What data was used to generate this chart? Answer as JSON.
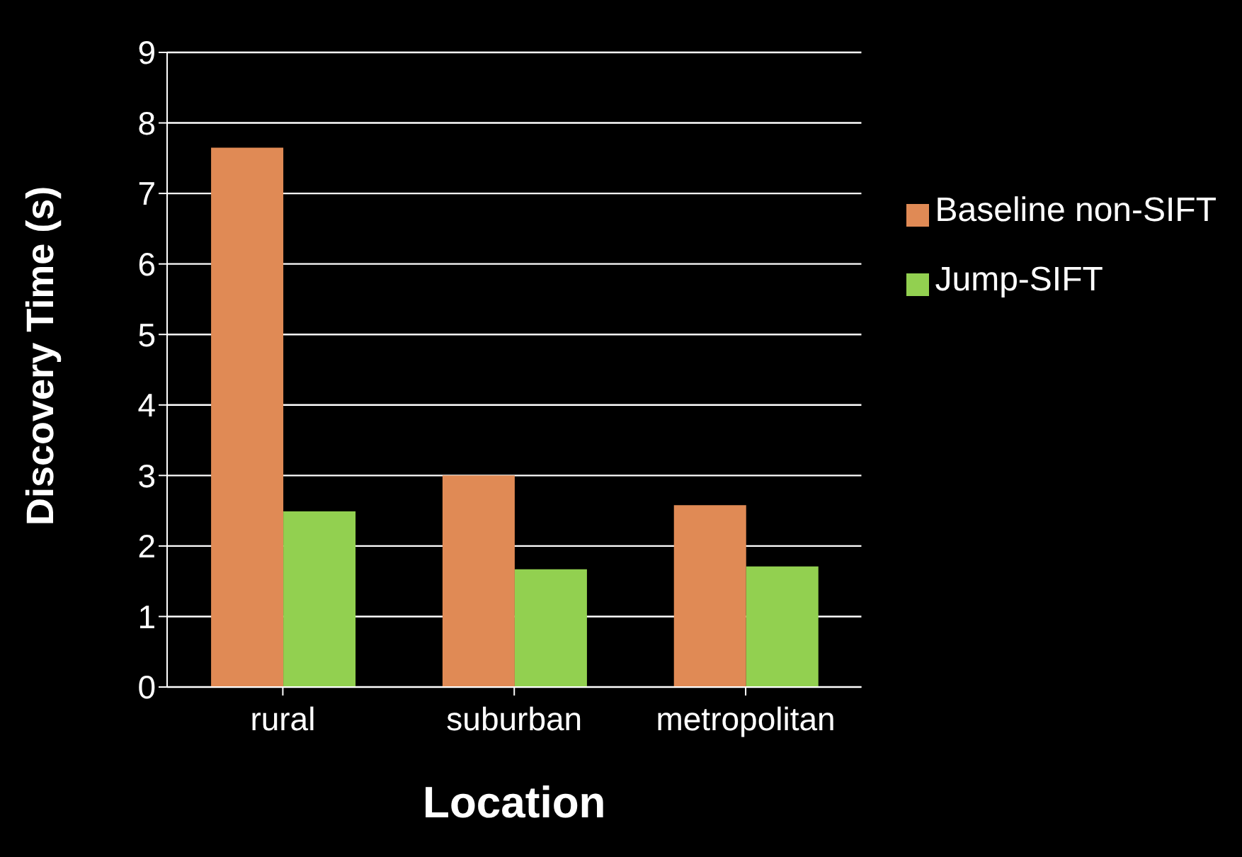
{
  "chart_data": {
    "type": "bar",
    "xlabel": "Location",
    "ylabel": "Discovery Time (s)",
    "categories": [
      "rural",
      "suburban",
      "metropolitan"
    ],
    "series": [
      {
        "name": "Baseline non-SIFT",
        "color": "#e08a55",
        "values": [
          7.65,
          3.0,
          2.58
        ]
      },
      {
        "name": "Jump-SIFT",
        "color": "#92d050",
        "values": [
          2.49,
          1.67,
          1.71
        ]
      }
    ],
    "ylim": [
      0,
      9
    ],
    "yticks": [
      0,
      1,
      2,
      3,
      4,
      5,
      6,
      7,
      8,
      9
    ],
    "grid": "y",
    "legend": "top right"
  }
}
